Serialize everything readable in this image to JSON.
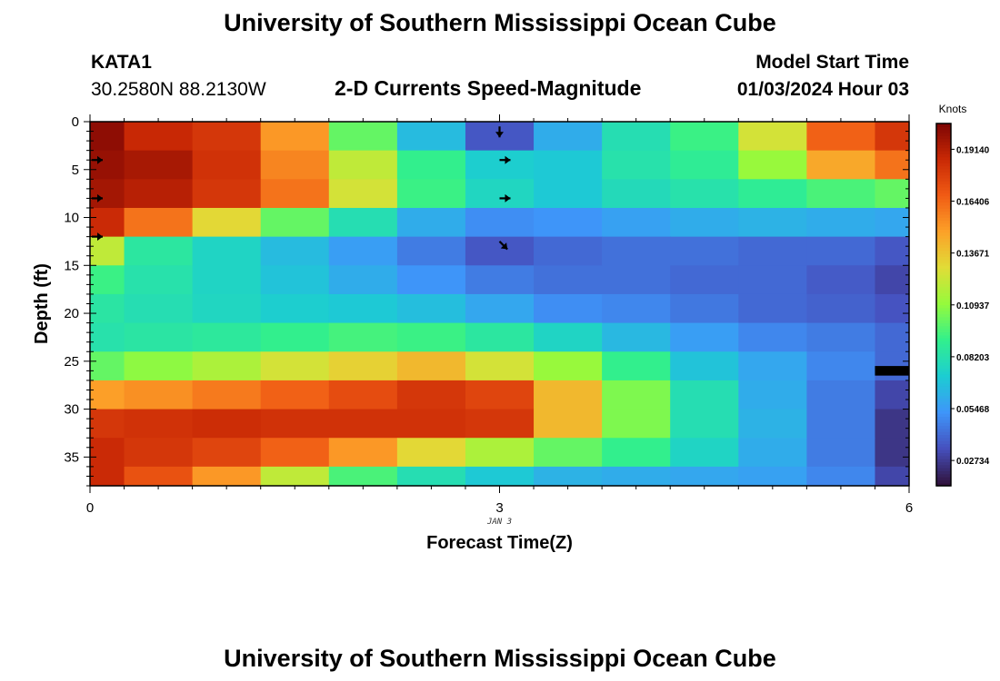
{
  "header": {
    "title": "University of Southern Mississippi Ocean Cube",
    "station": "KATA1",
    "coordinates": "30.2580N  88.2130W",
    "subtitle": "2-D Currents Speed-Magnitude",
    "start_label": "Model Start Time",
    "start_value": "01/03/2024 Hour 03"
  },
  "footer": {
    "title": "University of Southern Mississippi Ocean Cube"
  },
  "chart_data": {
    "type": "heatmap",
    "xlabel": "Forecast Time(Z)",
    "ylabel": "Depth (ft)",
    "x_date_label": "JAN 3",
    "xlim": [
      0,
      6
    ],
    "ylim": [
      38,
      0
    ],
    "x_ticks": [
      0,
      3,
      6
    ],
    "y_ticks": [
      0,
      5,
      10,
      15,
      20,
      25,
      30,
      35
    ],
    "x_edges": [
      0,
      0.25,
      0.75,
      1.25,
      1.75,
      2.25,
      2.75,
      3.25,
      3.75,
      4.25,
      4.75,
      5.25,
      5.75,
      6.0
    ],
    "y_edges": [
      0,
      3,
      6,
      9,
      12,
      15,
      18,
      21,
      24,
      27,
      30,
      33,
      36,
      38
    ],
    "colorbar": {
      "unit": "Knots",
      "ticks": [
        "0.02734",
        "0.05468",
        "0.08203",
        "0.10937",
        "0.13671",
        "0.16406",
        "0.19140"
      ],
      "range": [
        0.014,
        0.205
      ],
      "colormap": "turbo"
    },
    "values": [
      [
        0.2,
        0.186,
        0.18,
        0.15,
        0.1,
        0.065,
        0.035,
        0.06,
        0.08,
        0.092,
        0.125,
        0.165,
        0.18
      ],
      [
        0.198,
        0.194,
        0.182,
        0.155,
        0.12,
        0.09,
        0.072,
        0.07,
        0.082,
        0.088,
        0.11,
        0.145,
        0.16
      ],
      [
        0.195,
        0.19,
        0.18,
        0.16,
        0.125,
        0.092,
        0.076,
        0.07,
        0.078,
        0.082,
        0.088,
        0.095,
        0.1
      ],
      [
        0.185,
        0.16,
        0.13,
        0.1,
        0.08,
        0.06,
        0.05,
        0.052,
        0.056,
        0.06,
        0.062,
        0.06,
        0.058
      ],
      [
        0.12,
        0.085,
        0.075,
        0.065,
        0.055,
        0.045,
        0.035,
        0.04,
        0.042,
        0.042,
        0.04,
        0.04,
        0.035
      ],
      [
        0.092,
        0.082,
        0.075,
        0.068,
        0.06,
        0.052,
        0.045,
        0.042,
        0.042,
        0.04,
        0.04,
        0.036,
        0.03
      ],
      [
        0.084,
        0.08,
        0.076,
        0.072,
        0.07,
        0.066,
        0.058,
        0.05,
        0.048,
        0.044,
        0.04,
        0.038,
        0.034
      ],
      [
        0.082,
        0.084,
        0.086,
        0.09,
        0.094,
        0.092,
        0.085,
        0.075,
        0.064,
        0.055,
        0.048,
        0.045,
        0.04
      ],
      [
        0.1,
        0.108,
        0.115,
        0.125,
        0.132,
        0.14,
        0.125,
        0.11,
        0.09,
        0.068,
        0.058,
        0.048,
        0.04
      ],
      [
        0.148,
        0.152,
        0.158,
        0.165,
        0.172,
        0.18,
        0.175,
        0.14,
        0.105,
        0.08,
        0.06,
        0.045,
        0.03
      ],
      [
        0.18,
        0.182,
        0.184,
        0.182,
        0.182,
        0.182,
        0.18,
        0.14,
        0.105,
        0.08,
        0.062,
        0.045,
        0.025
      ],
      [
        0.185,
        0.18,
        0.175,
        0.165,
        0.15,
        0.13,
        0.115,
        0.1,
        0.09,
        0.075,
        0.06,
        0.045,
        0.025
      ],
      [
        0.185,
        0.17,
        0.15,
        0.12,
        0.095,
        0.08,
        0.07,
        0.062,
        0.06,
        0.058,
        0.056,
        0.048,
        0.03
      ]
    ],
    "masked_cells": [
      {
        "x_range": [
          5.75,
          6.0
        ],
        "y_range": [
          25.5,
          26.5
        ]
      }
    ],
    "arrows": [
      {
        "t": 0.0,
        "depth": 4,
        "direction": "E"
      },
      {
        "t": 0.0,
        "depth": 8,
        "direction": "E"
      },
      {
        "t": 0.0,
        "depth": 12,
        "direction": "E"
      },
      {
        "t": 3.0,
        "depth": 0.5,
        "direction": "S"
      },
      {
        "t": 3.0,
        "depth": 4,
        "direction": "E"
      },
      {
        "t": 3.0,
        "depth": 8,
        "direction": "E"
      },
      {
        "t": 3.0,
        "depth": 12.5,
        "direction": "SE"
      }
    ]
  }
}
